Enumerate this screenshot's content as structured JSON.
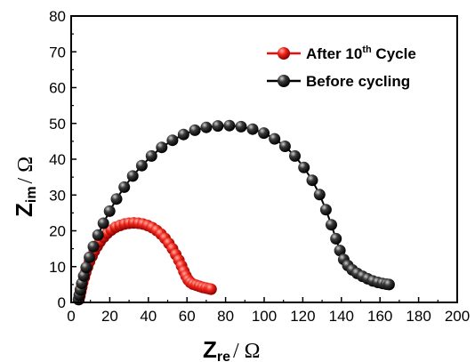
{
  "chart_data": {
    "type": "scatter",
    "xlabel": {
      "main": "Z",
      "sub": "re",
      "unit": "/ Ω"
    },
    "ylabel": {
      "main": "Z",
      "sub": "im",
      "unit": "/ Ω"
    },
    "xlim": [
      0,
      200
    ],
    "ylim": [
      0,
      80
    ],
    "xticks": [
      "0",
      "20",
      "40",
      "60",
      "80",
      "100",
      "120",
      "140",
      "160",
      "180",
      "200"
    ],
    "yticks": [
      "0",
      "10",
      "20",
      "30",
      "40",
      "50",
      "60",
      "70",
      "80"
    ],
    "grid": false,
    "legend_position": "top-right",
    "legend": [
      {
        "text": "After 10",
        "sup": "th",
        "rest": " Cycle"
      },
      {
        "text": "Before cycling",
        "sup": "",
        "rest": ""
      }
    ],
    "colors": {
      "after": "#e8100e",
      "before": "#111111",
      "after_line": "#e8100e",
      "before_line": "#000000"
    },
    "series": [
      {
        "key": "after",
        "points": [
          [
            4,
            0.8
          ],
          [
            4.5,
            1.8
          ],
          [
            5,
            3
          ],
          [
            5.5,
            4.3
          ],
          [
            6,
            5.6
          ],
          [
            6.8,
            7
          ],
          [
            7.5,
            8.4
          ],
          [
            8.5,
            9.9
          ],
          [
            9.5,
            11.4
          ],
          [
            10.8,
            12.9
          ],
          [
            12,
            14.3
          ],
          [
            13.5,
            15.7
          ],
          [
            15,
            17
          ],
          [
            16.8,
            18.2
          ],
          [
            18.7,
            19.3
          ],
          [
            20.8,
            20.2
          ],
          [
            23,
            21
          ],
          [
            25.3,
            21.5
          ],
          [
            27.6,
            21.9
          ],
          [
            30,
            22.1
          ],
          [
            32.4,
            22.2
          ],
          [
            34.8,
            22.1
          ],
          [
            37.2,
            21.9
          ],
          [
            39.6,
            21.5
          ],
          [
            42,
            20.9
          ],
          [
            44.3,
            20.1
          ],
          [
            46.5,
            19.1
          ],
          [
            48.6,
            17.9
          ],
          [
            50.6,
            16.5
          ],
          [
            52.5,
            15
          ],
          [
            54.2,
            13.4
          ],
          [
            55.8,
            11.8
          ],
          [
            57.2,
            10.2
          ],
          [
            58.4,
            8.7
          ],
          [
            59.5,
            7.4
          ],
          [
            60.6,
            6.3
          ],
          [
            61.8,
            5.6
          ],
          [
            63.2,
            5.1
          ],
          [
            64.8,
            4.8
          ],
          [
            66.5,
            4.5
          ],
          [
            68.2,
            4.2
          ],
          [
            69.9,
            4
          ],
          [
            71.5,
            3.8
          ],
          [
            72.5,
            3.7
          ]
        ]
      },
      {
        "key": "before",
        "points": [
          [
            3.8,
            0.8
          ],
          [
            4.2,
            2
          ],
          [
            4.8,
            3.5
          ],
          [
            5.5,
            5.3
          ],
          [
            6.5,
            7.4
          ],
          [
            7.8,
            9.8
          ],
          [
            9.5,
            12.6
          ],
          [
            11.5,
            15.6
          ],
          [
            13.9,
            18.8
          ],
          [
            16.7,
            22.1
          ],
          [
            19.9,
            25.5
          ],
          [
            23.5,
            28.9
          ],
          [
            27.5,
            32.2
          ],
          [
            31.9,
            35.3
          ],
          [
            36.6,
            38.2
          ],
          [
            41.6,
            40.9
          ],
          [
            46.9,
            43.3
          ],
          [
            52.5,
            45.3
          ],
          [
            58.2,
            46.9
          ],
          [
            64.1,
            48.1
          ],
          [
            70,
            48.9
          ],
          [
            76,
            49.3
          ],
          [
            82,
            49.4
          ],
          [
            88,
            49.1
          ],
          [
            94,
            48.4
          ],
          [
            99.8,
            47.3
          ],
          [
            105.4,
            45.7
          ],
          [
            110.8,
            43.6
          ],
          [
            115.9,
            40.9
          ],
          [
            120.6,
            37.7
          ],
          [
            124.9,
            34.1
          ],
          [
            128.7,
            30.1
          ],
          [
            132,
            25.9
          ],
          [
            134.8,
            21.7
          ],
          [
            137.2,
            17.8
          ],
          [
            139.2,
            14.5
          ],
          [
            141.2,
            12
          ],
          [
            143.3,
            10.3
          ],
          [
            145.6,
            9.1
          ],
          [
            148.2,
            8.1
          ],
          [
            150.9,
            7.3
          ],
          [
            153.6,
            6.6
          ],
          [
            156.3,
            6
          ],
          [
            158.9,
            5.6
          ],
          [
            161.3,
            5.3
          ],
          [
            163.3,
            5.1
          ],
          [
            164.7,
            5
          ]
        ]
      }
    ]
  }
}
